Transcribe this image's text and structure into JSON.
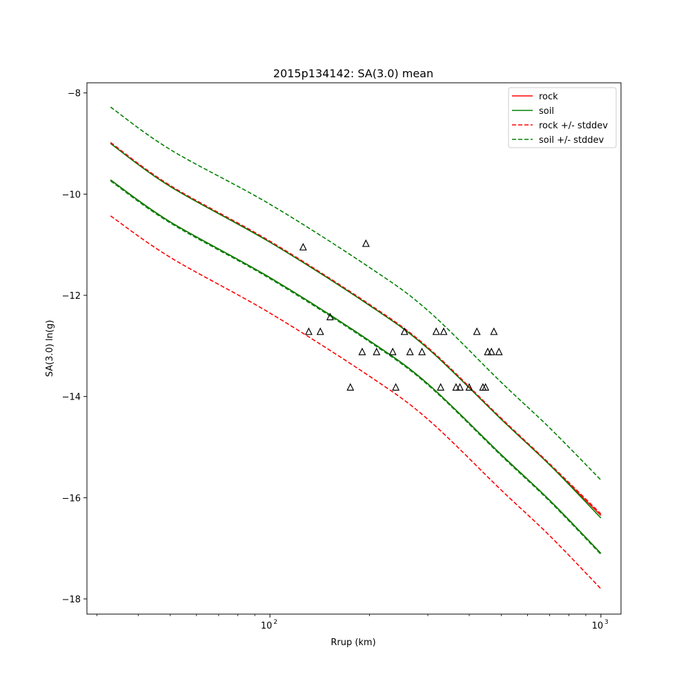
{
  "chart_data": {
    "type": "line",
    "title": "2015p134142: SA(3.0) mean",
    "xlabel": "Rrup (km)",
    "ylabel": "SA(3.0) ln(g)",
    "xscale": "log",
    "xlim": [
      28,
      1150
    ],
    "ylim": [
      -18.3,
      -7.8
    ],
    "grid": false,
    "legend_position": "top-right",
    "y_ticks": [
      -8,
      -10,
      -12,
      -14,
      -16,
      -18
    ],
    "x_ticks": [
      {
        "value": 100,
        "base": "10",
        "exp": "2"
      },
      {
        "value": 1000,
        "base": "10",
        "exp": "3"
      }
    ],
    "x_minor_ticks": [
      30,
      40,
      50,
      60,
      70,
      80,
      90,
      200,
      300,
      400,
      500,
      600,
      700,
      800,
      900
    ],
    "legend": [
      {
        "label": "rock",
        "color": "#ff0000",
        "style": "solid"
      },
      {
        "label": "soil",
        "color": "#008000",
        "style": "solid"
      },
      {
        "label": "rock +/- stddev",
        "color": "#ff0000",
        "style": "dashed"
      },
      {
        "label": "soil +/- stddev",
        "color": "#008000",
        "style": "dashed"
      }
    ],
    "x": [
      33,
      50,
      100,
      200,
      300,
      500,
      700,
      1000
    ],
    "series": [
      {
        "name": "rock",
        "style": "solid",
        "color": "#ff0000",
        "values": [
          -9.0,
          -9.85,
          -10.95,
          -12.2,
          -13.05,
          -14.45,
          -15.35,
          -16.35
        ]
      },
      {
        "name": "rock",
        "style": "solid",
        "color": "#ff0000",
        "values": [
          -9.72,
          -10.55,
          -11.65,
          -12.9,
          -13.75,
          -15.15,
          -16.05,
          -17.1
        ]
      },
      {
        "name": "soil",
        "style": "solid",
        "color": "#008000",
        "values": [
          -9.0,
          -9.85,
          -10.95,
          -12.2,
          -13.05,
          -14.45,
          -15.35,
          -16.4
        ]
      },
      {
        "name": "soil",
        "style": "solid",
        "color": "#008000",
        "values": [
          -9.72,
          -10.55,
          -11.65,
          -12.9,
          -13.75,
          -15.15,
          -16.05,
          -17.1
        ]
      },
      {
        "name": "rock +/- stddev",
        "style": "dashed",
        "color": "#ff0000",
        "values": [
          -8.98,
          -9.83,
          -10.93,
          -12.18,
          -13.03,
          -14.43,
          -15.33,
          -16.32
        ]
      },
      {
        "name": "rock +/- stddev",
        "style": "dashed",
        "color": "#ff0000",
        "values": [
          -10.43,
          -11.25,
          -12.35,
          -13.6,
          -14.45,
          -15.85,
          -16.75,
          -17.8
        ]
      },
      {
        "name": "soil +/- stddev",
        "style": "dashed",
        "color": "#008000",
        "values": [
          -8.28,
          -9.12,
          -10.2,
          -11.45,
          -12.3,
          -13.72,
          -14.62,
          -15.65
        ]
      },
      {
        "name": "soil +/- stddev",
        "style": "dashed",
        "color": "#008000",
        "values": [
          -9.74,
          -10.57,
          -11.67,
          -12.92,
          -13.77,
          -15.17,
          -16.07,
          -17.12
        ]
      }
    ],
    "observations": {
      "marker": "triangle",
      "points": [
        [
          126,
          -11.05
        ],
        [
          195,
          -10.98
        ],
        [
          131,
          -12.72
        ],
        [
          142,
          -12.72
        ],
        [
          152,
          -12.43
        ],
        [
          175,
          -13.82
        ],
        [
          190,
          -13.12
        ],
        [
          210,
          -13.12
        ],
        [
          235,
          -13.12
        ],
        [
          240,
          -13.82
        ],
        [
          255,
          -12.72
        ],
        [
          265,
          -13.12
        ],
        [
          288,
          -13.12
        ],
        [
          318,
          -12.72
        ],
        [
          335,
          -12.72
        ],
        [
          328,
          -13.82
        ],
        [
          365,
          -13.82
        ],
        [
          375,
          -13.82
        ],
        [
          400,
          -13.82
        ],
        [
          422,
          -12.72
        ],
        [
          440,
          -13.82
        ],
        [
          448,
          -13.82
        ],
        [
          455,
          -13.12
        ],
        [
          467,
          -13.12
        ],
        [
          475,
          -12.72
        ],
        [
          492,
          -13.12
        ]
      ]
    }
  }
}
